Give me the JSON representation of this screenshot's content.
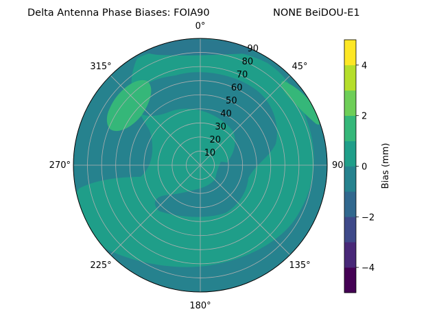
{
  "chart_data": {
    "type": "heatmap",
    "projection": "polar",
    "title_left": "Delta Antenna Phase Biases: FOIA90",
    "title_right": "NONE BeiDOU-E1",
    "theta_labels": [
      "0°",
      "45°",
      "90°",
      "135°",
      "180°",
      "225°",
      "270°",
      "315°"
    ],
    "theta_values": [
      0,
      45,
      90,
      135,
      180,
      225,
      270,
      315
    ],
    "r_labels": [
      "10",
      "20",
      "30",
      "40",
      "50",
      "60",
      "70",
      "80",
      "90"
    ],
    "r_values": [
      10,
      20,
      30,
      40,
      50,
      60,
      70,
      80,
      90
    ],
    "r_range": [
      0,
      90
    ],
    "theta_zero": "N",
    "theta_direction": "clockwise",
    "grid": true,
    "colorbar": {
      "label": "Bias (mm)",
      "range": [
        -5,
        5
      ],
      "tick_labels": [
        "−4",
        "−2",
        "0",
        "2",
        "4"
      ],
      "tick_values": [
        -4,
        -2,
        0,
        2,
        4
      ],
      "levels": [
        -5,
        -4.375,
        -3.75,
        -3.125,
        -2.5,
        -1.875,
        -1.25,
        -0.625,
        0,
        0.625,
        1.25,
        1.875,
        2.5,
        3.125,
        3.75,
        4.375,
        5
      ],
      "colors": [
        "#440154",
        "#482878",
        "#3e4989",
        "#31688e",
        "#26828e",
        "#1f9e89",
        "#35b779",
        "#6ece58",
        "#b5de2b",
        "#fde725"
      ]
    },
    "regions": [
      {
        "name": "background",
        "bias_level": [
          -0.625,
          0
        ],
        "color": "#26828e"
      },
      {
        "name": "ring-band-outer",
        "bias_level": [
          0,
          0.625
        ],
        "color": "#1f9e89"
      },
      {
        "name": "inner-lobe",
        "bias_level": [
          0,
          0.625
        ],
        "color": "#1f9e89"
      },
      {
        "name": "nw-patch",
        "bias_level": [
          0.625,
          1.25
        ],
        "color": "#35b779"
      },
      {
        "name": "ne-patch",
        "bias_level": [
          0.625,
          1.25
        ],
        "color": "#35b779"
      },
      {
        "name": "center-disk",
        "bias_level": [
          -0.625,
          0
        ],
        "color": "#26828e"
      },
      {
        "name": "south-tongue",
        "bias_level": [
          -0.625,
          0
        ],
        "color": "#26828e"
      },
      {
        "name": "north-rim",
        "bias_level": [
          -1.25,
          -0.625
        ],
        "color": "#26828e"
      }
    ]
  }
}
